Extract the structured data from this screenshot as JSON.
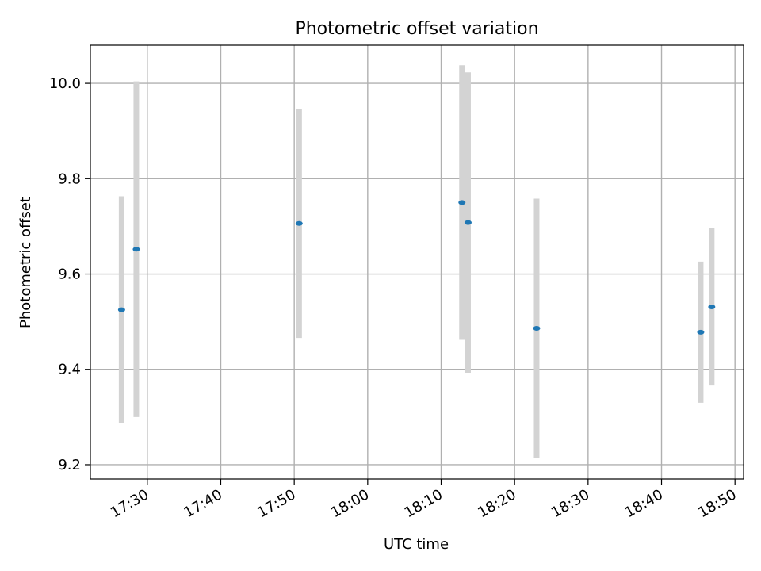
{
  "chart_data": {
    "type": "scatter",
    "title": "Photometric offset variation",
    "xlabel": "UTC time",
    "ylabel": "Photometric offset",
    "x_ticks": [
      "17:30",
      "17:40",
      "17:50",
      "18:00",
      "18:10",
      "18:20",
      "18:30",
      "18:40",
      "18:50"
    ],
    "y_ticks": [
      "9.2",
      "9.4",
      "9.6",
      "9.8",
      "10.0"
    ],
    "xlim": [
      "17:22:15",
      "18:51:10"
    ],
    "ylim": [
      9.17,
      10.08
    ],
    "grid": true,
    "series": [
      {
        "marker_color": "#1f77b4",
        "errorbar_color": "#d3d3d3",
        "points": [
          {
            "x": "17:26:30",
            "y": 9.525,
            "yerr": 0.238
          },
          {
            "x": "17:28:30",
            "y": 9.652,
            "yerr": 0.352
          },
          {
            "x": "17:50:40",
            "y": 9.706,
            "yerr": 0.24
          },
          {
            "x": "18:12:50",
            "y": 9.75,
            "yerr": 0.288
          },
          {
            "x": "18:13:40",
            "y": 9.708,
            "yerr": 0.315
          },
          {
            "x": "18:23:00",
            "y": 9.486,
            "yerr": 0.272
          },
          {
            "x": "18:45:20",
            "y": 9.478,
            "yerr": 0.148
          },
          {
            "x": "18:46:50",
            "y": 9.531,
            "yerr": 0.165
          }
        ]
      }
    ]
  }
}
